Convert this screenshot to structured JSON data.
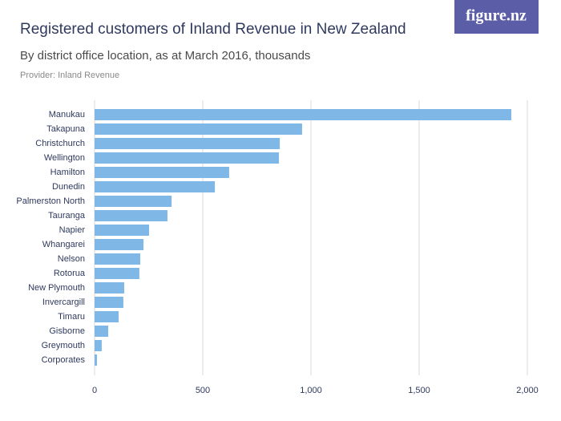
{
  "logo": "figure.nz",
  "chart_data": {
    "type": "bar",
    "orientation": "horizontal",
    "title": "Registered customers of Inland Revenue in New Zealand",
    "subtitle": "By district office location, as at March 2016, thousands",
    "source": "Provider: Inland Revenue",
    "categories": [
      "Manukau",
      "Takapuna",
      "Christchurch",
      "Wellington",
      "Hamilton",
      "Dunedin",
      "Palmerston North",
      "Tauranga",
      "Napier",
      "Whangarei",
      "Nelson",
      "Rotorua",
      "New Plymouth",
      "Invercargill",
      "Timaru",
      "Gisborne",
      "Greymouth",
      "Corporates"
    ],
    "values": [
      1926,
      959,
      856,
      852,
      622,
      556,
      356,
      337,
      252,
      226,
      211,
      207,
      137,
      133,
      111,
      63,
      33,
      11
    ],
    "color": "#7fb7e6",
    "xlim": [
      0,
      2000
    ],
    "xticks": [
      0,
      500,
      {
        "value": 1000,
        "label": "1,000"
      },
      {
        "value": 1500,
        "label": "1,500"
      },
      {
        "value": 2000,
        "label": "2,000"
      }
    ],
    "grid": true
  }
}
